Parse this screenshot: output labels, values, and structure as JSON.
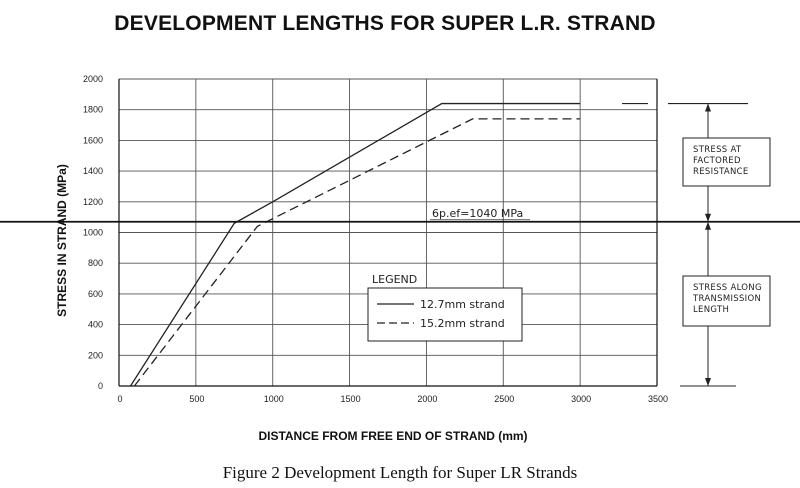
{
  "figure": {
    "title": "DEVELOPMENT LENGTHS FOR SUPER L.R. STRAND",
    "caption": "Figure 2 Development Length for Super LR Strands"
  },
  "chart_data": {
    "type": "line",
    "title": "DEVELOPMENT LENGTHS FOR SUPER L.R. STRAND",
    "xlabel": "DISTANCE FROM FREE END OF STRAND (mm)",
    "ylabel": "STRESS IN STRAND (MPa)",
    "xlim": [
      0,
      3500
    ],
    "ylim": [
      0,
      2000
    ],
    "xticks": [
      "0",
      "500",
      "1000",
      "1500",
      "2000",
      "2500",
      "3000",
      "3500"
    ],
    "yticks": [
      "0",
      "200",
      "400",
      "600",
      "800",
      "1000",
      "1200",
      "1400",
      "1600",
      "1800",
      "2000"
    ],
    "grid": true,
    "legend_title": "LEGEND",
    "series": [
      {
        "name": "12.7mm strand",
        "style": "solid",
        "x": [
          75,
          750,
          1000,
          2100,
          3000
        ],
        "y": [
          0,
          1060,
          1200,
          1840,
          1840
        ]
      },
      {
        "name": "15.2mm strand",
        "style": "dashed",
        "x": [
          100,
          900,
          1000,
          2300,
          3000
        ],
        "y": [
          0,
          1040,
          1090,
          1740,
          1740
        ]
      }
    ],
    "reference_line": {
      "y": 1070,
      "label": "6p.ef=1040 MPa"
    },
    "annotations": [
      {
        "lines": [
          "STRESS AT",
          "FACTORED",
          "RESISTANCE"
        ]
      },
      {
        "lines": [
          "STRESS ALONG",
          "TRANSMISSION",
          "LENGTH"
        ]
      }
    ]
  }
}
